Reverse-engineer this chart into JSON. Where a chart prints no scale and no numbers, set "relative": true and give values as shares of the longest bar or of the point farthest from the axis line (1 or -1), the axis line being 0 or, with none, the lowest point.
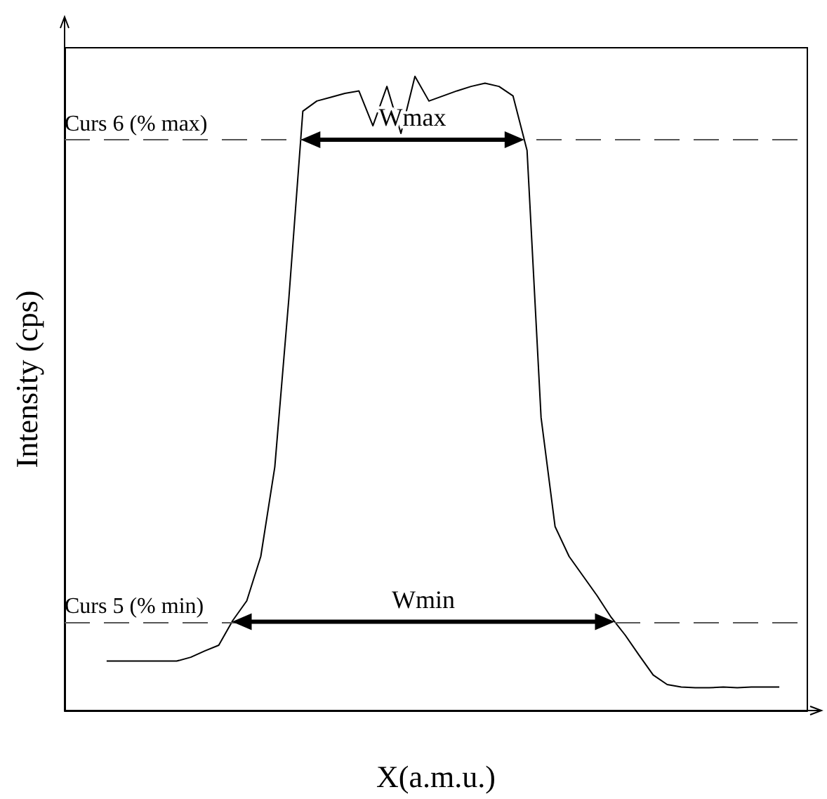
{
  "chart_data": {
    "type": "line",
    "relative": true,
    "xlabel": "X(a.m.u.)",
    "ylabel": "Intensity (cps)",
    "categories": [
      null,
      null,
      null,
      null,
      null,
      null,
      null,
      null,
      null,
      null,
      null,
      null,
      null,
      null,
      null,
      null,
      null,
      null,
      null,
      null,
      null,
      null,
      null,
      null,
      null,
      null,
      null,
      null,
      null,
      null,
      null,
      null,
      null,
      null,
      null,
      null,
      null,
      null,
      null,
      null,
      null,
      null,
      null,
      null,
      null,
      null,
      null,
      null,
      null,
      null,
      null,
      null,
      null,
      null
    ],
    "series": [
      {
        "color": "#000000",
        "values": [
          null,
          null,
          null,
          0.078,
          0.078,
          0.078,
          0.078,
          0.078,
          0.078,
          0.084,
          0.094,
          0.103,
          0.142,
          0.173,
          0.243,
          0.384,
          0.649,
          0.945,
          0.961,
          0.967,
          0.973,
          0.977,
          0.922,
          0.984,
          0.91,
          1,
          0.961,
          0.969,
          0.977,
          0.984,
          0.989,
          0.984,
          0.969,
          0.883,
          0.462,
          0.29,
          0.243,
          0.212,
          0.181,
          0.147,
          0.119,
          0.087,
          0.056,
          0.041,
          0.037,
          0.036,
          0.036,
          0.037,
          0.036,
          0.037,
          0.037,
          0.037,
          null,
          null
        ]
      }
    ],
    "ref_lines": [
      {
        "axis": "y",
        "value": 0.9,
        "label": "Curs 6 (% max)",
        "color": "#555555",
        "line_style": "dashed"
      },
      {
        "axis": "y",
        "value": 0.14,
        "label": "Curs 5 (% min)",
        "color": "#555555",
        "line_style": "dashed"
      }
    ],
    "annotations": [
      "Wmax",
      "Wmin"
    ],
    "grid": false
  }
}
